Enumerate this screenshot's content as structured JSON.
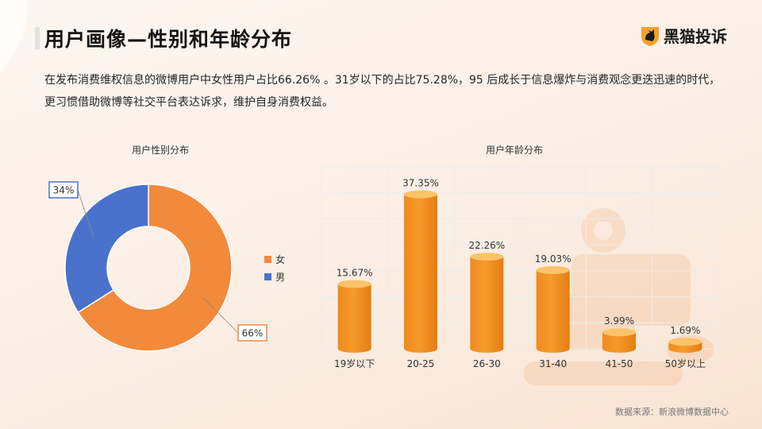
{
  "header": {
    "title": "用户画像—性别和年龄分布",
    "logo_text": "黑猫投诉"
  },
  "description": "在发布消费维权信息的微博用户中女性用户占比66.26% 。31岁以下的占比75.28%，95 后成长于信息爆炸与消费观念更迭迅速的时代，更习惯借助微博等社交平台表达诉求，维护自身消费权益。",
  "colors": {
    "female": "#f28a3c",
    "male": "#4a72cc",
    "bar_top": "#fcc36a",
    "bar_body": "#f59a2c"
  },
  "chart_data": [
    {
      "type": "pie",
      "title": "用户性别分布",
      "categories": [
        "女",
        "男"
      ],
      "values": [
        66,
        34
      ],
      "labels": [
        "66%",
        "34%"
      ],
      "legend_position": "right"
    },
    {
      "type": "bar",
      "title": "用户年龄分布",
      "categories": [
        "19岁以下",
        "20-25",
        "26-30",
        "31-40",
        "41-50",
        "50岁以上"
      ],
      "values": [
        15.67,
        37.35,
        22.26,
        19.03,
        3.99,
        1.69
      ],
      "labels": [
        "15.67%",
        "37.35%",
        "22.26%",
        "19.03%",
        "3.99%",
        "1.69%"
      ],
      "grid": true
    }
  ],
  "footer": {
    "source": "数据来源：新浪微博数据中心"
  }
}
